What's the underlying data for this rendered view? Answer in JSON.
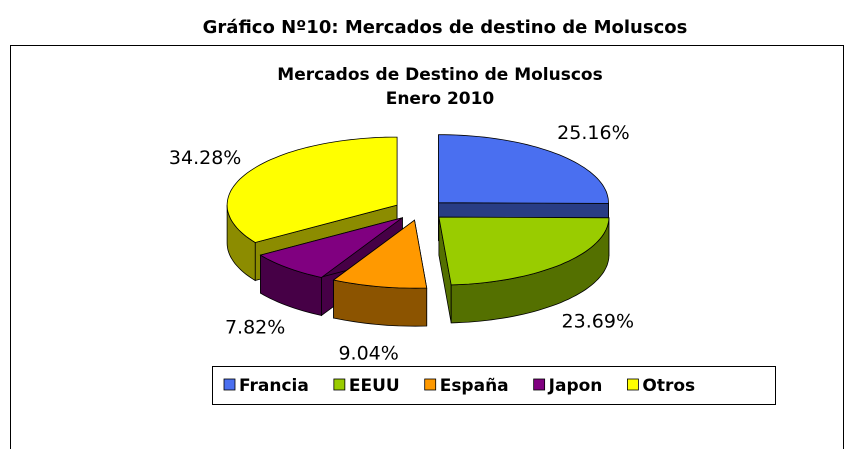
{
  "chart_data": {
    "type": "pie3d",
    "page_title": "Gráfico Nº10: Mercados de destino de Moluscos",
    "title": "Mercados de Destino de Moluscos",
    "subtitle": "Enero 2010",
    "categories": [
      "Francia",
      "EEUU",
      "España",
      "Japon",
      "Otros"
    ],
    "values": [
      25.16,
      23.69,
      9.04,
      7.82,
      34.28
    ],
    "value_labels": [
      "25.16%",
      "23.69%",
      "9.04%",
      "7.82%",
      "34.28%"
    ],
    "colors": [
      "#4a6ff0",
      "#99cc00",
      "#ff9900",
      "#800080",
      "#ffff00"
    ],
    "legend": "bottom"
  }
}
